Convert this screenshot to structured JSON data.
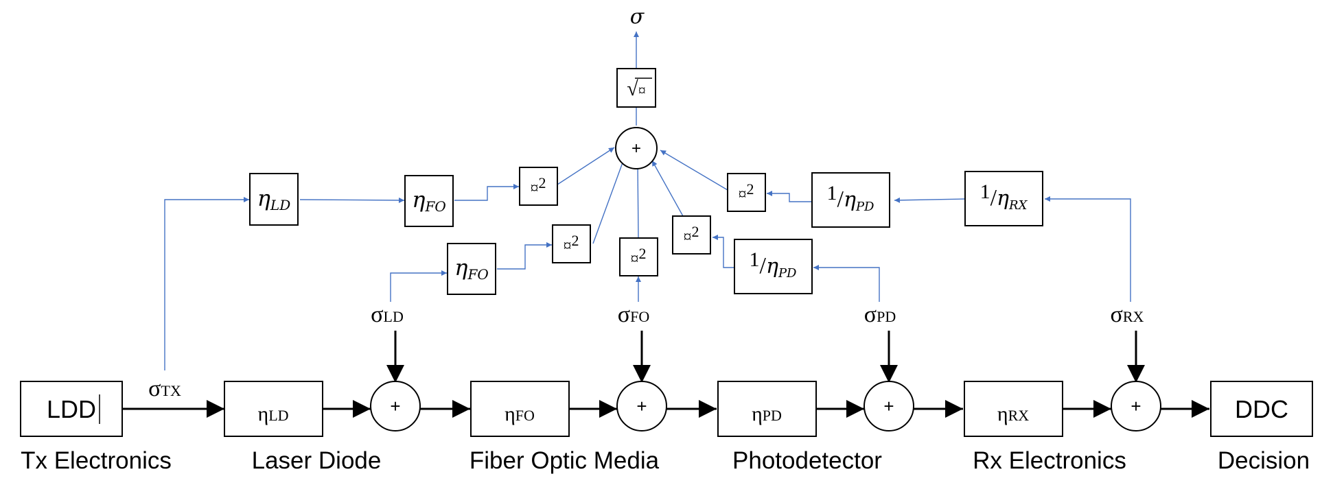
{
  "colors": {
    "main_path": "#000000",
    "noise_path": "#4472c4",
    "background": "#ffffff"
  },
  "chain": {
    "tx": {
      "box": "LDD",
      "caption": "Tx Electronics"
    },
    "ld": {
      "sym": "η",
      "sub": "LD",
      "caption": "Laser Diode"
    },
    "fo": {
      "sym": "η",
      "sub": "FO",
      "caption": "Fiber Optic Media"
    },
    "pd": {
      "sym": "η",
      "sub": "PD",
      "caption": "Photodetector"
    },
    "rx": {
      "sym": "η",
      "sub": "RX",
      "caption": "Rx Electronics"
    },
    "dec": {
      "box": "DDC",
      "caption": "Decision"
    },
    "plus": "+"
  },
  "noise": {
    "tx": {
      "sym": "σ",
      "sub": "TX"
    },
    "ld": {
      "sym": "σ",
      "sub": "LD"
    },
    "fo": {
      "sym": "σ",
      "sub": "FO"
    },
    "pd": {
      "sym": "σ",
      "sub": "PD"
    },
    "rx": {
      "sym": "σ",
      "sub": "RX"
    }
  },
  "combiner": {
    "output": "σ",
    "sqrt_symbol": "√",
    "placeholder": "¤",
    "square_exp": "2",
    "plus": "+"
  },
  "gains": {
    "eta": "η",
    "one": "1",
    "slash": "/",
    "LD": "LD",
    "FO": "FO",
    "PD": "PD",
    "RX": "RX"
  }
}
